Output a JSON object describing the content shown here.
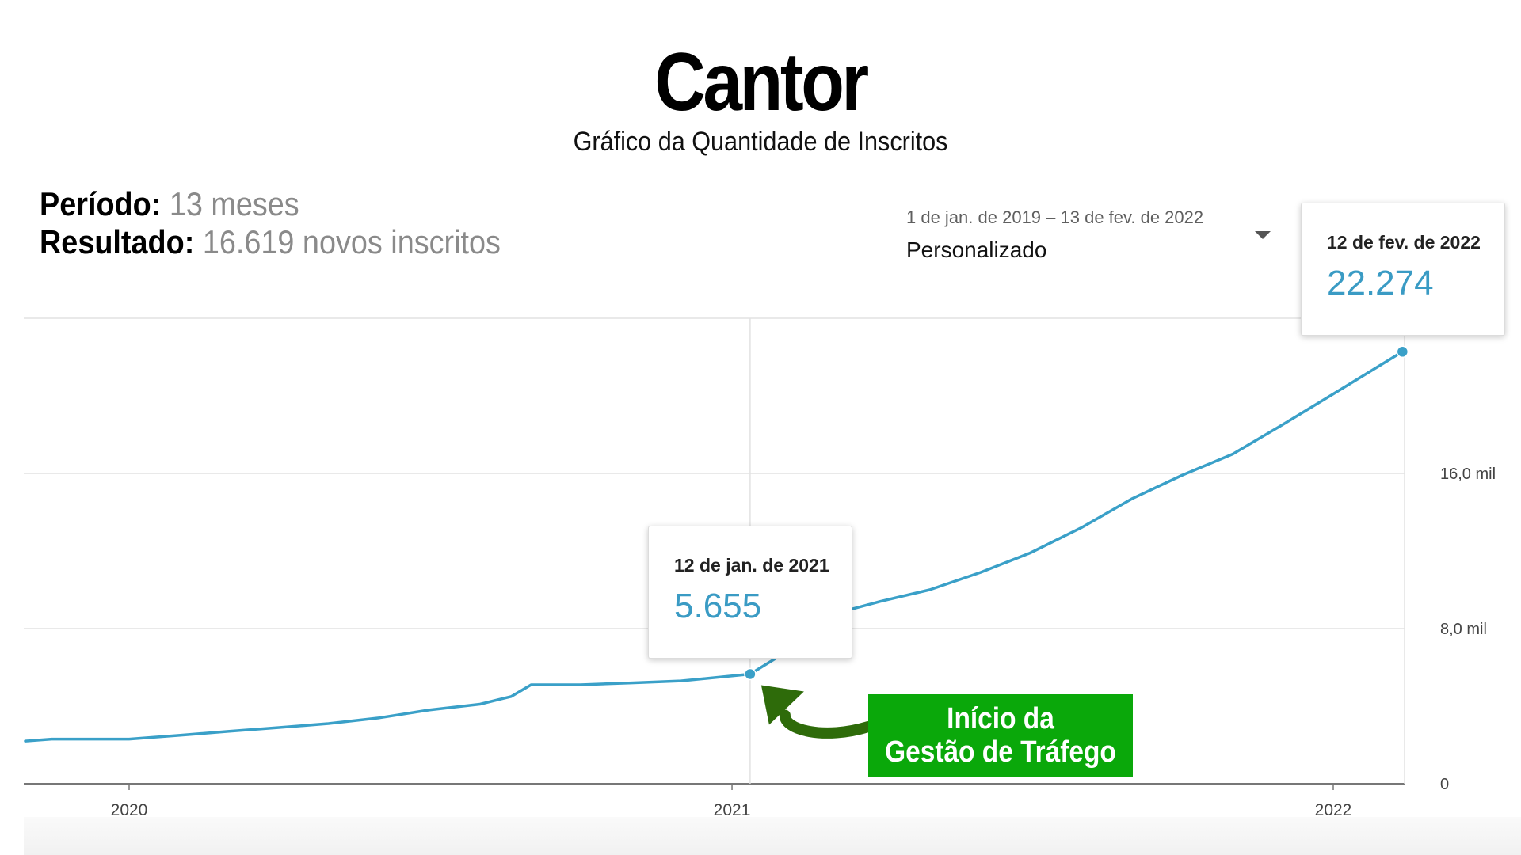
{
  "header": {
    "title": "Cantor",
    "subtitle": "Gráfico da Quantidade de Inscritos"
  },
  "stats": {
    "period_label": "Período:",
    "period_value": "13 meses",
    "result_label": "Resultado:",
    "result_value": "16.619 novos inscritos"
  },
  "date_range": {
    "dates": "1 de jan. de 2019 – 13 de fev. de 2022",
    "preset": "Personalizado",
    "icon": "chevron-down-icon"
  },
  "tooltips": [
    {
      "date": "12 de fev. de 2022",
      "value": "22.274"
    },
    {
      "date": "12 de jan. de 2021",
      "value": "5.655"
    }
  ],
  "callout": {
    "line1": "Início da",
    "line2": "Gestão de Tráfego",
    "color": "#0aa80a",
    "arrow_color": "#2e6b0a"
  },
  "colors": {
    "line": "#3aa0c8",
    "tooltip_value": "#3a9bc4",
    "grid": "#e2e2e2"
  },
  "chart_data": {
    "type": "line",
    "title": "Gráfico da Quantidade de Inscritos",
    "xlabel": "",
    "ylabel": "",
    "x_ticks": [
      "2020",
      "2021",
      "2022"
    ],
    "y_ticks": [
      "0",
      "8,0 mil",
      "16,0 mil"
    ],
    "ylim": [
      0,
      24000
    ],
    "xlim": [
      "2019-10-30",
      "2022-02-12"
    ],
    "grid": true,
    "series": [
      {
        "values_x": [
          "2019-10-30",
          "2019-11-15",
          "2020-01-01",
          "2020-02-01",
          "2020-03-01",
          "2020-04-01",
          "2020-05-01",
          "2020-06-01",
          "2020-07-01",
          "2020-08-01",
          "2020-08-20",
          "2020-09-01",
          "2020-10-01",
          "2020-11-01",
          "2020-12-01",
          "2021-01-12",
          "2021-02-01",
          "2021-03-01",
          "2021-04-01",
          "2021-05-01",
          "2021-06-01",
          "2021-07-01",
          "2021-08-01",
          "2021-09-01",
          "2021-10-01",
          "2021-11-01",
          "2021-12-01",
          "2022-01-01",
          "2022-02-12"
        ],
        "values": [
          2200,
          2300,
          2300,
          2500,
          2700,
          2900,
          3100,
          3400,
          3800,
          4100,
          4500,
          5100,
          5100,
          5200,
          5300,
          5655,
          6700,
          8700,
          9400,
          10000,
          10900,
          11900,
          13200,
          14700,
          15900,
          17000,
          18500,
          20100,
          22274
        ]
      }
    ],
    "highlights": [
      {
        "x": "2021-01-12",
        "y": 5655
      },
      {
        "x": "2022-02-12",
        "y": 22274
      }
    ]
  }
}
